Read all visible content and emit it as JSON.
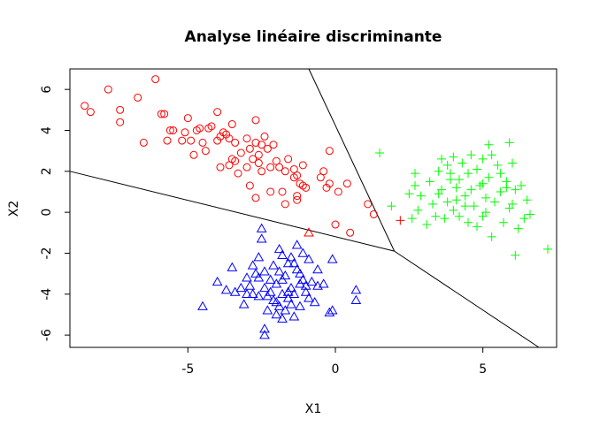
{
  "chart_data": {
    "type": "scatter",
    "title": "Analyse linéaire discriminante",
    "xlabel": "X1",
    "ylabel": "X2",
    "xlim": [
      -9,
      7.5
    ],
    "ylim": [
      -6.6,
      7
    ],
    "xticks": [
      -5,
      0,
      5
    ],
    "yticks": [
      -6,
      -4,
      -2,
      0,
      2,
      4,
      6
    ],
    "grid": false,
    "boundaries": [
      {
        "from": [
          -9,
          2.0
        ],
        "to": [
          2.0,
          -1.9
        ]
      },
      {
        "from": [
          -0.9,
          7.0
        ],
        "to": [
          2.0,
          -1.9
        ]
      },
      {
        "from": [
          2.0,
          -1.9
        ],
        "to": [
          6.9,
          -6.6
        ]
      }
    ],
    "series": [
      {
        "marker": "circle",
        "color": "#ff0000",
        "points": [
          [
            -8.5,
            5.2
          ],
          [
            -8.3,
            4.9
          ],
          [
            -7.7,
            6.0
          ],
          [
            -7.3,
            5.0
          ],
          [
            -7.3,
            4.4
          ],
          [
            -6.7,
            5.6
          ],
          [
            -6.5,
            3.4
          ],
          [
            -6.1,
            6.5
          ],
          [
            -5.9,
            4.8
          ],
          [
            -5.8,
            4.8
          ],
          [
            -5.7,
            3.5
          ],
          [
            -5.6,
            4.0
          ],
          [
            -5.5,
            4.0
          ],
          [
            -5.2,
            3.5
          ],
          [
            -5.1,
            3.9
          ],
          [
            -5.0,
            4.6
          ],
          [
            -4.9,
            3.5
          ],
          [
            -4.8,
            2.8
          ],
          [
            -4.7,
            4.0
          ],
          [
            -4.6,
            4.1
          ],
          [
            -4.5,
            3.4
          ],
          [
            -4.3,
            4.1
          ],
          [
            -4.2,
            4.2
          ],
          [
            -4.0,
            4.9
          ],
          [
            -4.0,
            3.5
          ],
          [
            -3.9,
            3.7
          ],
          [
            -3.8,
            3.9
          ],
          [
            -3.7,
            3.8
          ],
          [
            -3.6,
            3.6
          ],
          [
            -3.5,
            4.3
          ],
          [
            -3.4,
            3.4
          ],
          [
            -3.5,
            2.6
          ],
          [
            -3.4,
            2.5
          ],
          [
            -3.6,
            2.3
          ],
          [
            -3.9,
            2.2
          ],
          [
            -3.3,
            1.9
          ],
          [
            -3.0,
            2.2
          ],
          [
            -3.0,
            3.6
          ],
          [
            -2.9,
            3.1
          ],
          [
            -2.8,
            2.6
          ],
          [
            -2.7,
            3.4
          ],
          [
            -2.6,
            2.8
          ],
          [
            -2.5,
            3.3
          ],
          [
            -2.4,
            3.7
          ],
          [
            -2.3,
            3.1
          ],
          [
            -2.2,
            2.2
          ],
          [
            -2.0,
            2.5
          ],
          [
            -1.9,
            2.2
          ],
          [
            -1.7,
            2.0
          ],
          [
            -1.6,
            2.6
          ],
          [
            -1.4,
            2.1
          ],
          [
            -1.3,
            1.8
          ],
          [
            -1.1,
            2.3
          ],
          [
            -1.2,
            1.4
          ],
          [
            -2.7,
            4.5
          ],
          [
            -2.9,
            1.3
          ],
          [
            -2.1,
            3.3
          ],
          [
            -1.8,
            1.0
          ],
          [
            -1.4,
            1.7
          ],
          [
            -1.1,
            1.3
          ],
          [
            -1.3,
            0.6
          ],
          [
            -1.0,
            1.2
          ],
          [
            -0.5,
            1.7
          ],
          [
            -0.4,
            2.0
          ],
          [
            -0.2,
            1.4
          ],
          [
            -0.2,
            3.0
          ],
          [
            -0.3,
            1.2
          ],
          [
            0.1,
            1.0
          ],
          [
            0.4,
            1.4
          ],
          [
            1.1,
            0.4
          ],
          [
            1.3,
            -0.1
          ],
          [
            0.0,
            -0.6
          ],
          [
            0.5,
            -1.0
          ],
          [
            -1.7,
            0.4
          ],
          [
            -2.2,
            1.0
          ],
          [
            -2.5,
            2.0
          ],
          [
            -2.7,
            0.7
          ],
          [
            -1.3,
            0.8
          ],
          [
            -4.4,
            3.0
          ],
          [
            -3.2,
            2.9
          ],
          [
            -2.6,
            2.4
          ]
        ]
      },
      {
        "marker": "triangle",
        "color": "#0000ff",
        "points": [
          [
            -4.5,
            -4.6
          ],
          [
            -4.0,
            -3.4
          ],
          [
            -3.7,
            -3.8
          ],
          [
            -3.5,
            -2.7
          ],
          [
            -3.4,
            -3.9
          ],
          [
            -3.2,
            -3.7
          ],
          [
            -3.1,
            -4.5
          ],
          [
            -3.0,
            -3.2
          ],
          [
            -2.9,
            -3.6
          ],
          [
            -2.8,
            -4.0
          ],
          [
            -2.7,
            -3.0
          ],
          [
            -2.6,
            -2.2
          ],
          [
            -2.6,
            -4.1
          ],
          [
            -2.5,
            -0.8
          ],
          [
            -2.5,
            -1.3
          ],
          [
            -2.4,
            -5.7
          ],
          [
            -2.4,
            -6.0
          ],
          [
            -2.3,
            -4.8
          ],
          [
            -2.2,
            -3.9
          ],
          [
            -2.1,
            -4.3
          ],
          [
            -2.1,
            -2.6
          ],
          [
            -2.0,
            -3.5
          ],
          [
            -2.0,
            -5.0
          ],
          [
            -1.9,
            -1.8
          ],
          [
            -1.9,
            -2.9
          ],
          [
            -1.8,
            -4.0
          ],
          [
            -1.8,
            -3.3
          ],
          [
            -1.7,
            -4.8
          ],
          [
            -1.6,
            -4.2
          ],
          [
            -1.5,
            -3.7
          ],
          [
            -1.5,
            -2.2
          ],
          [
            -1.4,
            -5.1
          ],
          [
            -1.3,
            -2.8
          ],
          [
            -1.3,
            -1.6
          ],
          [
            -1.2,
            -4.6
          ],
          [
            -1.1,
            -3.3
          ],
          [
            -1.0,
            -3.9
          ],
          [
            -0.9,
            -2.3
          ],
          [
            -0.8,
            -3.4
          ],
          [
            -0.7,
            -4.4
          ],
          [
            -0.6,
            -3.6
          ],
          [
            -0.4,
            -3.5
          ],
          [
            -0.2,
            -4.9
          ],
          [
            -0.1,
            -2.3
          ],
          [
            -0.1,
            -4.8
          ],
          [
            0.7,
            -3.8
          ],
          [
            0.7,
            -4.3
          ],
          [
            -2.2,
            -3.3
          ],
          [
            -2.0,
            -4.4
          ],
          [
            -1.7,
            -3.1
          ],
          [
            -1.6,
            -2.5
          ],
          [
            -1.4,
            -4.0
          ],
          [
            -1.2,
            -3.0
          ],
          [
            -1.0,
            -3.6
          ],
          [
            -0.9,
            -4.2
          ],
          [
            -0.6,
            -2.8
          ],
          [
            -2.8,
            -2.6
          ],
          [
            -2.4,
            -3.7
          ],
          [
            -1.8,
            -5.2
          ],
          [
            -1.5,
            -4.5
          ],
          [
            -1.2,
            -3.5
          ],
          [
            -1.8,
            -2.1
          ],
          [
            -1.4,
            -2.5
          ],
          [
            -2.3,
            -4.1
          ],
          [
            -1.6,
            -3.9
          ],
          [
            -1.9,
            -4.6
          ],
          [
            -2.6,
            -3.2
          ],
          [
            -1.1,
            -2.0
          ],
          [
            -3.0,
            -4.0
          ],
          [
            -2.4,
            -2.9
          ]
        ]
      },
      {
        "marker": "plus",
        "color": "#00ff00",
        "points": [
          [
            1.9,
            0.3
          ],
          [
            2.5,
            0.9
          ],
          [
            2.6,
            -0.3
          ],
          [
            2.7,
            1.3
          ],
          [
            2.7,
            1.9
          ],
          [
            2.8,
            0.1
          ],
          [
            3.2,
            1.5
          ],
          [
            3.3,
            0.4
          ],
          [
            3.4,
            -0.2
          ],
          [
            3.5,
            2.0
          ],
          [
            3.6,
            1.1
          ],
          [
            3.6,
            2.6
          ],
          [
            3.7,
            -0.3
          ],
          [
            3.8,
            0.5
          ],
          [
            3.8,
            2.3
          ],
          [
            3.9,
            1.6
          ],
          [
            4.0,
            0.1
          ],
          [
            4.0,
            2.7
          ],
          [
            4.1,
            1.2
          ],
          [
            4.2,
            -0.2
          ],
          [
            4.3,
            2.4
          ],
          [
            4.4,
            0.8
          ],
          [
            4.5,
            1.9
          ],
          [
            4.5,
            -0.5
          ],
          [
            4.6,
            1.1
          ],
          [
            4.7,
            0.3
          ],
          [
            4.8,
            2.1
          ],
          [
            4.9,
            1.3
          ],
          [
            5.0,
            -0.2
          ],
          [
            5.0,
            2.6
          ],
          [
            5.1,
            0.7
          ],
          [
            5.2,
            3.3
          ],
          [
            5.2,
            1.7
          ],
          [
            5.3,
            -1.2
          ],
          [
            5.4,
            0.5
          ],
          [
            5.5,
            2.3
          ],
          [
            5.6,
            1.0
          ],
          [
            5.7,
            -0.5
          ],
          [
            5.8,
            1.5
          ],
          [
            5.9,
            3.4
          ],
          [
            5.9,
            0.2
          ],
          [
            6.0,
            2.4
          ],
          [
            6.1,
            1.1
          ],
          [
            6.2,
            -0.8
          ],
          [
            6.3,
            1.3
          ],
          [
            6.4,
            -0.3
          ],
          [
            6.5,
            0.6
          ],
          [
            6.1,
            -2.1
          ],
          [
            7.2,
            -1.8
          ],
          [
            3.1,
            -0.6
          ],
          [
            2.9,
            0.8
          ],
          [
            4.2,
            1.6
          ],
          [
            4.6,
            2.8
          ],
          [
            5.1,
            0.0
          ],
          [
            5.6,
            1.9
          ],
          [
            6.0,
            0.4
          ],
          [
            4.8,
            -0.7
          ],
          [
            3.9,
            1.9
          ],
          [
            5.3,
            2.8
          ],
          [
            6.6,
            -0.1
          ],
          [
            4.4,
            0.3
          ],
          [
            5.8,
            1.2
          ],
          [
            3.5,
            0.9
          ],
          [
            4.1,
            0.6
          ],
          [
            5.0,
            1.4
          ],
          [
            1.5,
            2.9
          ]
        ]
      }
    ],
    "extra_points": [
      {
        "marker": "triangle",
        "color": "#ff0000",
        "x": -0.9,
        "y": -1.0
      },
      {
        "marker": "plus",
        "color": "#ff0000",
        "x": 2.2,
        "y": -0.4
      }
    ]
  }
}
